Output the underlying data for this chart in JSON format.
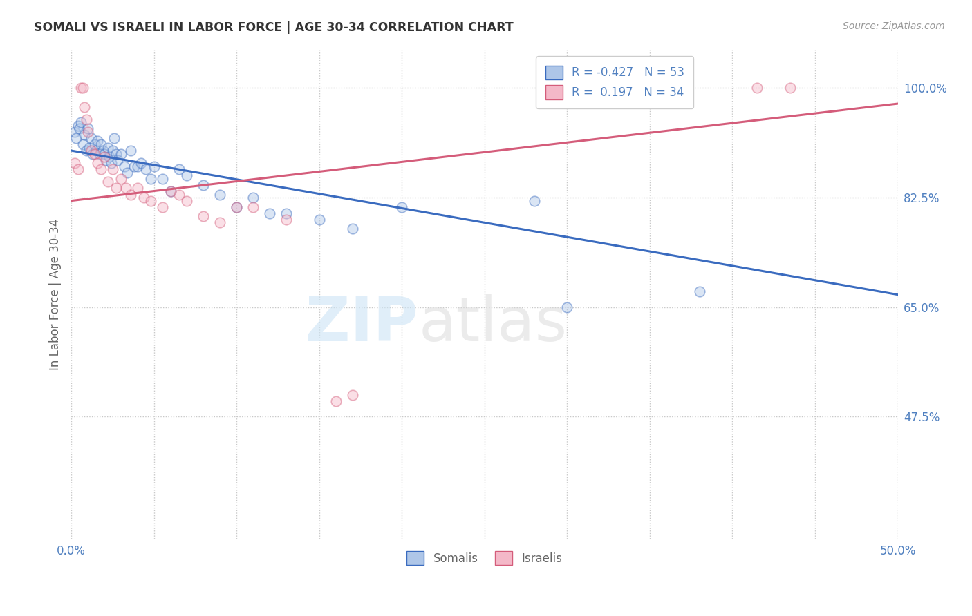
{
  "title": "SOMALI VS ISRAELI IN LABOR FORCE | AGE 30-34 CORRELATION CHART",
  "source_text": "Source: ZipAtlas.com",
  "ylabel": "In Labor Force | Age 30-34",
  "xlim": [
    0.0,
    0.5
  ],
  "ylim": [
    0.28,
    1.06
  ],
  "yticks": [
    0.475,
    0.65,
    0.825,
    1.0
  ],
  "ytick_labels": [
    "47.5%",
    "65.0%",
    "82.5%",
    "100.0%"
  ],
  "xticks": [
    0.0,
    0.05,
    0.1,
    0.15,
    0.2,
    0.25,
    0.3,
    0.35,
    0.4,
    0.45,
    0.5
  ],
  "xtick_labels": [
    "0.0%",
    "",
    "",
    "",
    "",
    "",
    "",
    "",
    "",
    "",
    "50.0%"
  ],
  "somali_R": -0.427,
  "somali_N": 53,
  "israeli_R": 0.197,
  "israeli_N": 34,
  "somali_color": "#aec6e8",
  "israeli_color": "#f4b8c8",
  "somali_line_color": "#3a6bbf",
  "israeli_line_color": "#d45c7a",
  "background_color": "#ffffff",
  "grid_color": "#c8c8c8",
  "title_color": "#333333",
  "axis_label_color": "#666666",
  "tick_color": "#5080c0",
  "somali_scatter_x": [
    0.002,
    0.003,
    0.004,
    0.005,
    0.006,
    0.007,
    0.008,
    0.009,
    0.01,
    0.011,
    0.012,
    0.013,
    0.014,
    0.015,
    0.016,
    0.017,
    0.018,
    0.019,
    0.02,
    0.021,
    0.022,
    0.023,
    0.024,
    0.025,
    0.026,
    0.027,
    0.028,
    0.03,
    0.032,
    0.034,
    0.036,
    0.038,
    0.04,
    0.042,
    0.045,
    0.048,
    0.05,
    0.055,
    0.06,
    0.065,
    0.07,
    0.08,
    0.09,
    0.1,
    0.11,
    0.12,
    0.13,
    0.15,
    0.17,
    0.2,
    0.28,
    0.3,
    0.38
  ],
  "somali_scatter_y": [
    0.93,
    0.92,
    0.94,
    0.935,
    0.945,
    0.91,
    0.925,
    0.9,
    0.935,
    0.905,
    0.92,
    0.895,
    0.91,
    0.9,
    0.915,
    0.895,
    0.91,
    0.9,
    0.895,
    0.885,
    0.905,
    0.89,
    0.88,
    0.9,
    0.92,
    0.895,
    0.885,
    0.895,
    0.875,
    0.865,
    0.9,
    0.875,
    0.875,
    0.88,
    0.87,
    0.855,
    0.875,
    0.855,
    0.835,
    0.87,
    0.86,
    0.845,
    0.83,
    0.81,
    0.825,
    0.8,
    0.8,
    0.79,
    0.775,
    0.81,
    0.82,
    0.65,
    0.675
  ],
  "israeli_scatter_x": [
    0.002,
    0.004,
    0.006,
    0.007,
    0.008,
    0.009,
    0.01,
    0.012,
    0.014,
    0.016,
    0.018,
    0.02,
    0.022,
    0.025,
    0.027,
    0.03,
    0.033,
    0.036,
    0.04,
    0.044,
    0.048,
    0.055,
    0.06,
    0.065,
    0.07,
    0.08,
    0.09,
    0.1,
    0.11,
    0.13,
    0.16,
    0.17,
    0.415,
    0.435
  ],
  "israeli_scatter_y": [
    0.88,
    0.87,
    1.0,
    1.0,
    0.97,
    0.95,
    0.93,
    0.9,
    0.895,
    0.88,
    0.87,
    0.89,
    0.85,
    0.87,
    0.84,
    0.855,
    0.84,
    0.83,
    0.84,
    0.825,
    0.82,
    0.81,
    0.835,
    0.83,
    0.82,
    0.795,
    0.785,
    0.81,
    0.81,
    0.79,
    0.5,
    0.51,
    1.0,
    1.0
  ],
  "somali_trendline_x": [
    0.0,
    0.5
  ],
  "somali_trendline_y": [
    0.9,
    0.67
  ],
  "israeli_trendline_x": [
    0.0,
    0.5
  ],
  "israeli_trendline_y": [
    0.82,
    0.975
  ],
  "watermark_zip": "ZIP",
  "watermark_atlas": "atlas",
  "marker_size": 110,
  "marker_alpha": 0.45,
  "marker_edge_width": 1.2
}
